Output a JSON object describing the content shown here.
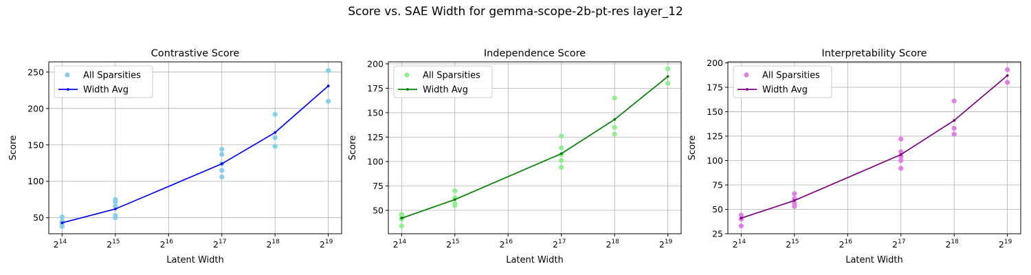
{
  "figure": {
    "suptitle": "Score vs. SAE Width for gemma-scope-2b-pt-res layer_12"
  },
  "chart_data": [
    {
      "type": "scatter",
      "title": "Contrastive Score",
      "xlabel": "Latent Width",
      "ylabel": "Score",
      "x_scale": "log2",
      "x_ticks": [
        16384,
        32768,
        65536,
        131072,
        262144,
        524288
      ],
      "x_tick_labels": [
        {
          "base": "2",
          "exp": "14"
        },
        {
          "base": "2",
          "exp": "15"
        },
        {
          "base": "2",
          "exp": "16"
        },
        {
          "base": "2",
          "exp": "17"
        },
        {
          "base": "2",
          "exp": "18"
        },
        {
          "base": "2",
          "exp": "19"
        }
      ],
      "y_ticks": [
        50,
        100,
        150,
        200,
        250
      ],
      "ylim": [
        28,
        264
      ],
      "grid": true,
      "legend_position": "upper-left",
      "scatter_color": "#87ceeb",
      "line_color": "#0000ff",
      "series": [
        {
          "name": "All Sparsities",
          "kind": "scatter",
          "points": [
            [
              16384,
              38
            ],
            [
              16384,
              42
            ],
            [
              16384,
              45
            ],
            [
              16384,
              51
            ],
            [
              32768,
              50
            ],
            [
              32768,
              53
            ],
            [
              32768,
              66
            ],
            [
              32768,
              72
            ],
            [
              32768,
              75
            ],
            [
              131072,
              106
            ],
            [
              131072,
              115
            ],
            [
              131072,
              124
            ],
            [
              131072,
              137
            ],
            [
              131072,
              144
            ],
            [
              262144,
              148
            ],
            [
              262144,
              160
            ],
            [
              262144,
              192
            ],
            [
              524288,
              210
            ],
            [
              524288,
              252
            ]
          ]
        },
        {
          "name": "Width Avg",
          "kind": "line",
          "points": [
            [
              16384,
              43
            ],
            [
              32768,
              62
            ],
            [
              131072,
              124
            ],
            [
              262144,
              167
            ],
            [
              524288,
              231
            ]
          ]
        }
      ]
    },
    {
      "type": "scatter",
      "title": "Independence Score",
      "xlabel": "Latent Width",
      "ylabel": "Score",
      "x_scale": "log2",
      "x_ticks": [
        16384,
        32768,
        65536,
        131072,
        262144,
        524288
      ],
      "x_tick_labels": [
        {
          "base": "2",
          "exp": "14"
        },
        {
          "base": "2",
          "exp": "15"
        },
        {
          "base": "2",
          "exp": "16"
        },
        {
          "base": "2",
          "exp": "17"
        },
        {
          "base": "2",
          "exp": "18"
        },
        {
          "base": "2",
          "exp": "19"
        }
      ],
      "y_ticks": [
        50,
        75,
        100,
        125,
        150,
        175,
        200
      ],
      "ylim": [
        26,
        202
      ],
      "grid": true,
      "legend_position": "upper-left",
      "scatter_color": "#90ee90",
      "line_color": "#008000",
      "series": [
        {
          "name": "All Sparsities",
          "kind": "scatter",
          "points": [
            [
              16384,
              34
            ],
            [
              16384,
              41
            ],
            [
              16384,
              44
            ],
            [
              16384,
              46
            ],
            [
              32768,
              55
            ],
            [
              32768,
              57
            ],
            [
              32768,
              63
            ],
            [
              32768,
              70
            ],
            [
              131072,
              94
            ],
            [
              131072,
              101
            ],
            [
              131072,
              107
            ],
            [
              131072,
              114
            ],
            [
              131072,
              126
            ],
            [
              262144,
              128
            ],
            [
              262144,
              135
            ],
            [
              262144,
              165
            ],
            [
              524288,
              180
            ],
            [
              524288,
              195
            ]
          ]
        },
        {
          "name": "Width Avg",
          "kind": "line",
          "points": [
            [
              16384,
              42
            ],
            [
              32768,
              61
            ],
            [
              131072,
              108
            ],
            [
              262144,
              143
            ],
            [
              524288,
              187
            ]
          ]
        }
      ]
    },
    {
      "type": "scatter",
      "title": "Interpretability Score",
      "xlabel": "Latent Width",
      "ylabel": "Score",
      "x_scale": "log2",
      "x_ticks": [
        16384,
        32768,
        65536,
        131072,
        262144,
        524288
      ],
      "x_tick_labels": [
        {
          "base": "2",
          "exp": "14"
        },
        {
          "base": "2",
          "exp": "15"
        },
        {
          "base": "2",
          "exp": "16"
        },
        {
          "base": "2",
          "exp": "17"
        },
        {
          "base": "2",
          "exp": "18"
        },
        {
          "base": "2",
          "exp": "19"
        }
      ],
      "y_ticks": [
        25,
        50,
        75,
        100,
        125,
        150,
        175,
        200
      ],
      "ylim": [
        25,
        201
      ],
      "grid": true,
      "legend_position": "upper-left",
      "scatter_color": "#e080e0",
      "line_color": "#800080",
      "series": [
        {
          "name": "All Sparsities",
          "kind": "scatter",
          "points": [
            [
              16384,
              33
            ],
            [
              16384,
              40
            ],
            [
              16384,
              44
            ],
            [
              32768,
              53
            ],
            [
              32768,
              56
            ],
            [
              32768,
              61
            ],
            [
              32768,
              66
            ],
            [
              131072,
              92
            ],
            [
              131072,
              100
            ],
            [
              131072,
              104
            ],
            [
              131072,
              109
            ],
            [
              131072,
              122
            ],
            [
              262144,
              127
            ],
            [
              262144,
              133
            ],
            [
              262144,
              161
            ],
            [
              524288,
              180
            ],
            [
              524288,
              193
            ]
          ]
        },
        {
          "name": "Width Avg",
          "kind": "line",
          "points": [
            [
              16384,
              41
            ],
            [
              32768,
              59
            ],
            [
              131072,
              106
            ],
            [
              262144,
              141
            ],
            [
              524288,
              187
            ]
          ]
        }
      ]
    }
  ]
}
